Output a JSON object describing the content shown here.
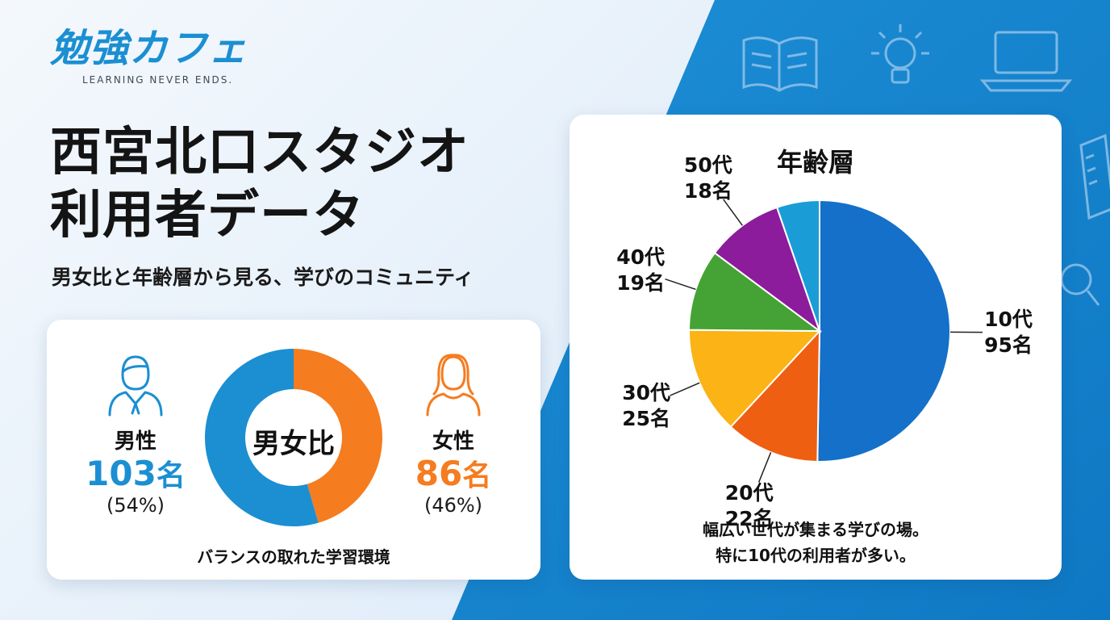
{
  "logo": {
    "name": "勉強カフェ",
    "tagline": "LEARNING NEVER ENDS."
  },
  "title": {
    "line1": "西宮北口スタジオ",
    "line2": "利用者データ"
  },
  "subtitle": "男女比と年齢層から見る、学びのコミュニティ",
  "gender": {
    "center_label": "男女比",
    "male": {
      "label": "男性",
      "count": "103",
      "unit": "名",
      "percent": "(54%)",
      "color": "#1b8fd2"
    },
    "female": {
      "label": "女性",
      "count": "86",
      "unit": "名",
      "percent": "(46%)",
      "color": "#f57c1f"
    },
    "caption": "バランスの取れた学習環境"
  },
  "age": {
    "title": "年齢層",
    "caption_line1": "幅広い世代が集まる学びの場。",
    "caption_line2": "特に10代の利用者が多い。"
  },
  "chart_data": [
    {
      "type": "pie",
      "style": "donut",
      "title": "男女比",
      "categories": [
        "男性",
        "女性"
      ],
      "values": [
        103,
        86
      ],
      "percent": [
        54,
        46
      ],
      "colors": [
        "#1b8fd2",
        "#f57c1f"
      ]
    },
    {
      "type": "pie",
      "title": "年齢層",
      "categories": [
        "10代",
        "20代",
        "30代",
        "40代",
        "50代",
        ""
      ],
      "values": [
        95,
        22,
        25,
        19,
        18,
        10
      ],
      "value_labels": [
        "95名",
        "22名",
        "25名",
        "19名",
        "18名",
        ""
      ],
      "colors": [
        "#1470c8",
        "#ef5f12",
        "#fbb315",
        "#44a334",
        "#8c1c9b",
        "#1a9dd6"
      ]
    }
  ]
}
